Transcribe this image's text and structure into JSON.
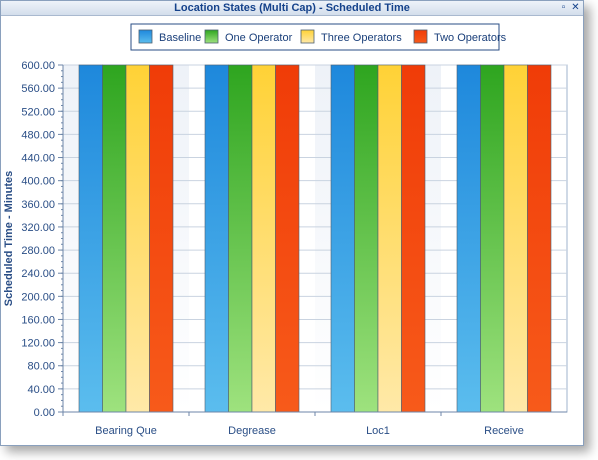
{
  "window": {
    "title": "Location States (Multi Cap) - Scheduled Time",
    "restore_icon": "restore-icon",
    "close_icon": "close-icon",
    "restore_glyph": "▫",
    "close_glyph": "✕"
  },
  "chart_data": {
    "type": "bar",
    "title": "Location States (Multi Cap) - Scheduled Time",
    "xlabel": "",
    "ylabel": "Scheduled Time - Minutes",
    "ylim": [
      0,
      600
    ],
    "ytick_step": 40,
    "ytick_format_decimals": 2,
    "grid": true,
    "legend_position": "top",
    "categories": [
      "Bearing Que",
      "Degrease",
      "Loc1",
      "Receive"
    ],
    "series": [
      {
        "name": "Baseline",
        "values": [
          600,
          600,
          600,
          600
        ],
        "color_top": "#1e88dc",
        "color_bottom": "#5bbdee"
      },
      {
        "name": "One Operator",
        "values": [
          600,
          600,
          600,
          600
        ],
        "color_top": "#2ea51f",
        "color_bottom": "#9ee27e"
      },
      {
        "name": "Three Operators",
        "values": [
          600,
          600,
          600,
          600
        ],
        "color_top": "#ffd236",
        "color_bottom": "#ffe9a8"
      },
      {
        "name": "Two Operators",
        "values": [
          600,
          600,
          600,
          600
        ],
        "color_top": "#f03c08",
        "color_bottom": "#f75a1a"
      }
    ]
  }
}
